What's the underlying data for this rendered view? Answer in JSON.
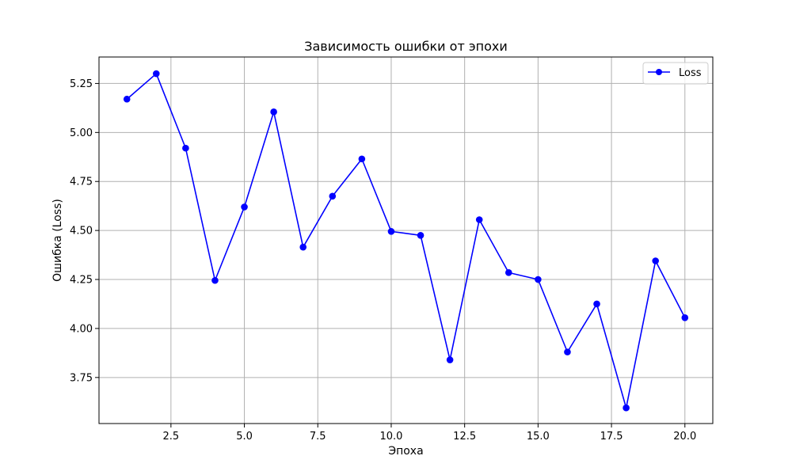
{
  "chart_data": {
    "type": "line",
    "title": "Зависимость ошибки от эпохи",
    "xlabel": "Эпоха",
    "ylabel": "Ошибка (Loss)",
    "xlim": [
      0.05,
      20.95
    ],
    "ylim": [
      3.515,
      5.385
    ],
    "x_ticks": [
      "2.5",
      "5.0",
      "7.5",
      "10.0",
      "12.5",
      "15.0",
      "17.5",
      "20.0"
    ],
    "y_ticks": [
      "3.75",
      "4.00",
      "4.25",
      "4.50",
      "4.75",
      "5.00",
      "5.25"
    ],
    "grid": true,
    "legend_position": "top-right",
    "series": [
      {
        "name": "Loss",
        "color": "#0000ff",
        "marker": "circle",
        "x": [
          1,
          2,
          3,
          4,
          5,
          6,
          7,
          8,
          9,
          10,
          11,
          12,
          13,
          14,
          15,
          16,
          17,
          18,
          19,
          20
        ],
        "y": [
          5.17,
          5.3,
          4.92,
          4.245,
          4.62,
          5.105,
          4.415,
          4.675,
          4.865,
          4.495,
          4.475,
          3.84,
          4.555,
          4.285,
          4.25,
          3.88,
          4.125,
          3.595,
          4.345,
          4.055
        ]
      }
    ]
  }
}
